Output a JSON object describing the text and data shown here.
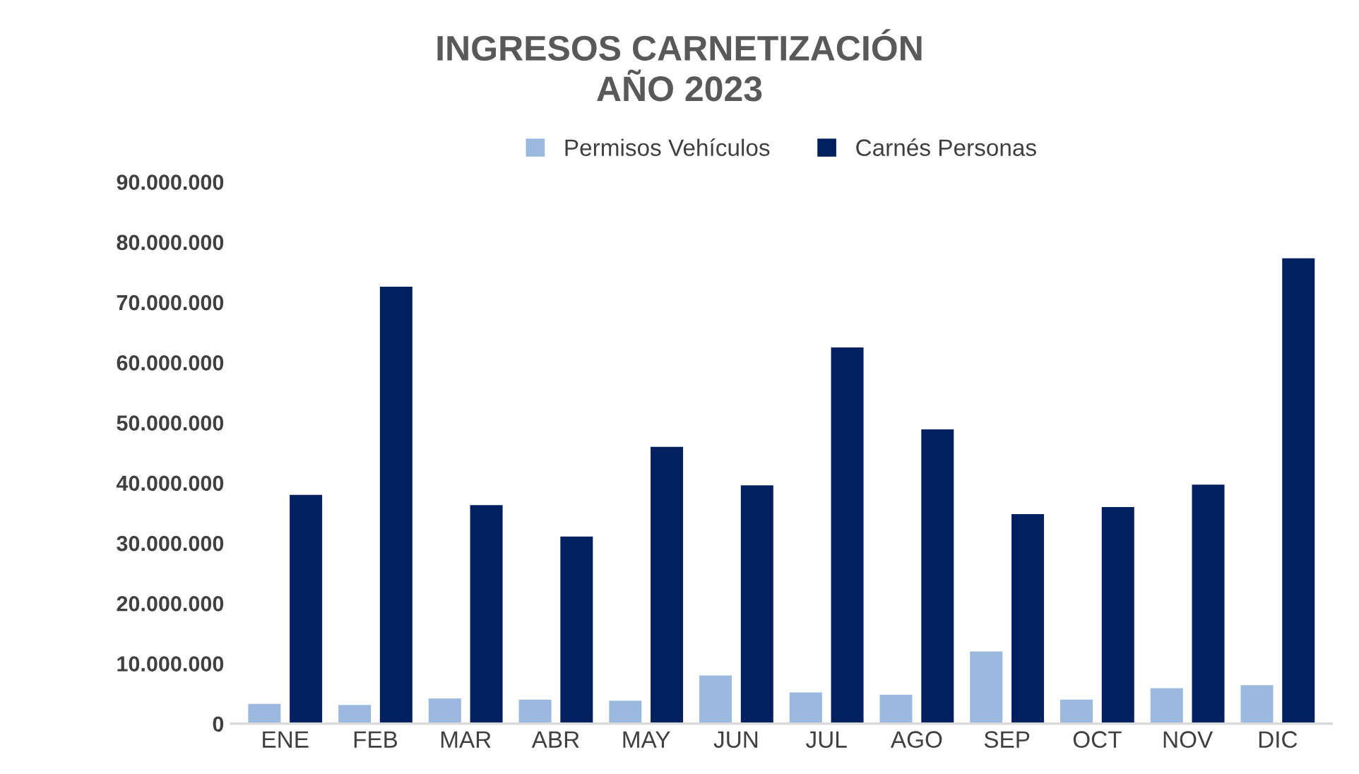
{
  "chart_data": {
    "type": "bar",
    "title": "INGRESOS CARNETIZACIÓN\nAÑO 2023",
    "categories": [
      "ENE",
      "FEB",
      "MAR",
      "ABR",
      "MAY",
      "JUN",
      "JUL",
      "AGO",
      "SEP",
      "OCT",
      "NOV",
      "DIC"
    ],
    "series": [
      {
        "name": "Permisos Vehículos",
        "color": "#9bb9df",
        "values": [
          3300000,
          3100000,
          4200000,
          4000000,
          3800000,
          8000000,
          5200000,
          4800000,
          12000000,
          4000000,
          5900000,
          6400000
        ]
      },
      {
        "name": "Carnés Personas",
        "color": "#002060",
        "values": [
          38000000,
          72600000,
          36300000,
          31100000,
          46000000,
          39600000,
          62500000,
          48900000,
          34800000,
          36000000,
          39700000,
          77300000
        ]
      }
    ],
    "ylim": [
      0,
      90000000
    ],
    "yticks": [
      {
        "value": 0,
        "label": "0"
      },
      {
        "value": 10000000,
        "label": "10.000.000"
      },
      {
        "value": 20000000,
        "label": "20.000.000"
      },
      {
        "value": 30000000,
        "label": "30.000.000"
      },
      {
        "value": 40000000,
        "label": "40.000.000"
      },
      {
        "value": 50000000,
        "label": "50.000.000"
      },
      {
        "value": 60000000,
        "label": "60.000.000"
      },
      {
        "value": 70000000,
        "label": "70.000.000"
      },
      {
        "value": 80000000,
        "label": "80.000.000"
      },
      {
        "value": 90000000,
        "label": "90.000.000"
      }
    ],
    "grid": false,
    "legend": "top"
  }
}
